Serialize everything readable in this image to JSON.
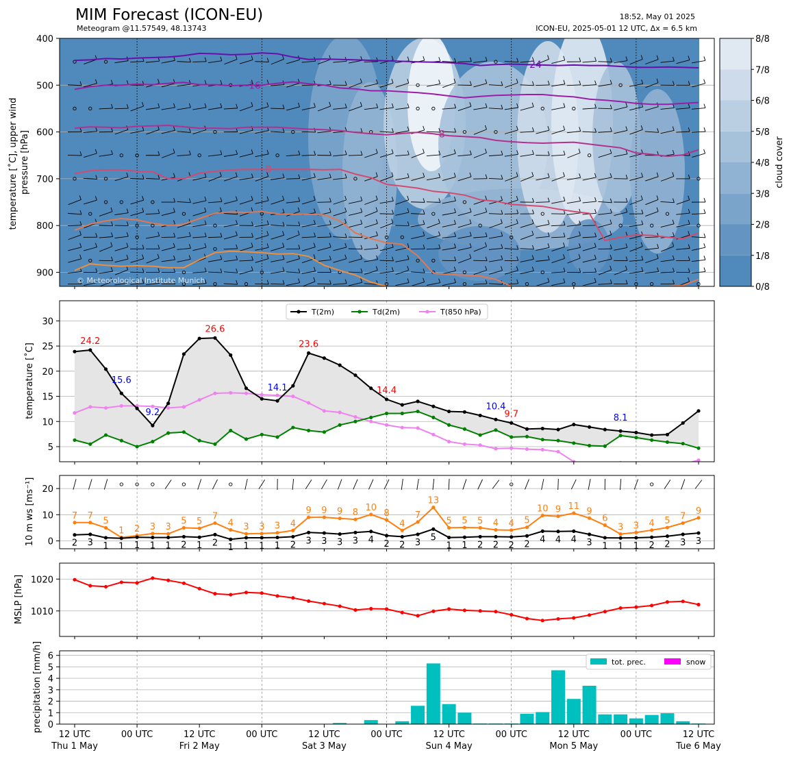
{
  "header": {
    "title": "MIM Forecast (ICON-EU)",
    "subtitle": "Meteogram @11.57549, 48.13743",
    "timestamp": "18:52, May 01 2025",
    "run_info": "ICON-EU, 2025-05-01 12 UTC, Δx = 6.5 km",
    "copyright": "© Meteorological Institute Munich"
  },
  "time_axis": {
    "tick_labels": [
      "12 UTC",
      "00 UTC",
      "12 UTC",
      "00 UTC",
      "12 UTC",
      "00 UTC",
      "12 UTC",
      "00 UTC",
      "12 UTC",
      "00 UTC",
      "12 UTC"
    ],
    "day_labels": [
      "Thu 1 May",
      "Fri 2 May",
      "Sat 3 May",
      "Sun 4 May",
      "Mon 5 May",
      "Tue 6 May"
    ]
  },
  "colors": {
    "t2m": "#000000",
    "td2m": "#008000",
    "t850": "#ee82ee",
    "ws": "#ff7f0e",
    "mslp": "#ff0000",
    "precip": "#00bfbf",
    "snow": "#ff00ff",
    "max_label": "#ff0000",
    "min_label": "#0000ff"
  },
  "chart_data": [
    {
      "type": "heatmap",
      "ylabel": "temperature [˚C], upper wind\npressure [hPa]",
      "ylim": [
        930,
        400
      ],
      "yticks": [
        400,
        500,
        600,
        700,
        800,
        900
      ],
      "colorbar": {
        "label": "cloud cover",
        "ticks": [
          "0/8",
          "1/8",
          "2/8",
          "3/8",
          "4/8",
          "5/8",
          "6/8",
          "7/8",
          "8/8"
        ],
        "colors": [
          "#5089bb",
          "#6394c2",
          "#7aa4ca",
          "#91b3d3",
          "#a6c1da",
          "#bacfe2",
          "#cddbea",
          "#e0e9f2",
          "#f2f6fa"
        ]
      },
      "isotherms": [
        {
          "label": "-24",
          "color": "#6a0dad",
          "pressure": [
            447,
            446,
            443,
            444,
            442,
            441,
            440,
            437,
            432,
            433,
            435,
            434,
            431,
            433,
            440,
            445,
            444,
            445,
            446,
            447,
            448,
            449,
            450,
            451,
            452,
            454,
            458,
            456,
            455,
            456,
            457,
            458,
            457,
            458,
            458,
            460,
            462,
            462,
            461,
            462,
            463
          ]
        },
        {
          "label": "-16",
          "color": "#9b1fa6",
          "pressure": [
            509,
            503,
            500,
            500,
            498,
            499,
            496,
            494,
            499,
            499,
            501,
            500,
            500,
            496,
            493,
            497,
            500,
            506,
            508,
            512,
            512,
            514,
            516,
            519,
            523,
            527,
            524,
            522,
            521,
            520,
            520,
            523,
            525,
            530,
            532,
            535,
            539,
            541,
            541,
            539,
            537
          ]
        },
        {
          "label": "-8",
          "color": "#b3318e",
          "pressure": [
            592,
            589,
            590,
            591,
            588,
            587,
            586,
            589,
            592,
            592,
            593,
            590,
            590,
            590,
            592,
            594,
            595,
            597,
            601,
            604,
            606,
            603,
            601,
            604,
            608,
            610,
            612,
            618,
            621,
            623,
            624,
            623,
            622,
            626,
            630,
            634,
            645,
            648,
            652,
            649,
            638
          ]
        },
        {
          "label": "0",
          "color": "#d24b6e",
          "pressure": [
            689,
            683,
            681,
            681,
            684,
            685,
            700,
            700,
            688,
            684,
            681,
            680,
            680,
            680,
            680,
            680,
            681,
            680,
            690,
            698,
            712,
            716,
            720,
            727,
            730,
            735,
            745,
            748,
            755,
            757,
            759,
            765,
            770,
            774,
            832,
            825,
            820,
            821,
            825,
            828,
            816
          ]
        },
        {
          "label": "8",
          "color": "#e07852",
          "pressure": [
            810,
            797,
            790,
            785,
            788,
            795,
            800,
            797,
            785,
            774,
            771,
            772,
            770,
            775,
            776,
            776,
            777,
            790,
            816,
            828,
            837,
            840,
            865,
            902,
            905,
            906,
            908,
            915,
            930,
            930,
            930,
            930,
            930,
            930,
            930,
            930,
            930,
            930,
            930,
            928,
            915
          ]
        },
        {
          "label": "16",
          "color": "#ef8e3c",
          "pressure": [
            896,
            882,
            885,
            887,
            886,
            887,
            890,
            890,
            873,
            858,
            855,
            856,
            858,
            861,
            860,
            866,
            885,
            896,
            906,
            921,
            930,
            930,
            930,
            930,
            930,
            930,
            930,
            930,
            930,
            930,
            930,
            930,
            930,
            930,
            930,
            930,
            930,
            930,
            930,
            930,
            930
          ]
        }
      ]
    },
    {
      "type": "line",
      "ylabel": "temperature [˚C]",
      "ylim": [
        2,
        34
      ],
      "yticks": [
        5,
        10,
        15,
        20,
        25,
        30
      ],
      "x_hours": [
        0,
        3,
        6,
        9,
        12,
        15,
        18,
        21,
        24,
        27,
        30,
        33,
        36,
        39,
        42,
        45,
        48,
        51,
        54,
        57,
        60,
        63,
        66,
        69,
        72,
        75,
        78,
        81,
        84,
        87,
        90,
        93,
        96,
        99,
        102,
        105,
        108,
        111,
        114,
        117,
        120
      ],
      "legend": [
        "T(2m)",
        "Td(2m)",
        "T(850 hPa)"
      ],
      "series": [
        {
          "name": "T(2m)",
          "values": [
            23.9,
            24.2,
            20.4,
            15.6,
            12.6,
            9.2,
            13.6,
            23.4,
            26.5,
            26.6,
            23.2,
            16.6,
            14.5,
            14.1,
            17.1,
            23.6,
            22.6,
            21.2,
            19.2,
            16.6,
            14.4,
            13.3,
            14.0,
            13.0,
            12.0,
            11.9,
            11.2,
            10.4,
            9.7,
            8.5,
            8.6,
            8.4,
            9.4,
            8.9,
            8.4,
            8.1,
            7.8,
            7.3,
            7.4,
            9.7,
            12.1
          ]
        },
        {
          "name": "Td(2m)",
          "values": [
            6.3,
            5.5,
            7.3,
            6.2,
            5.0,
            6.0,
            7.7,
            7.9,
            6.2,
            5.5,
            8.2,
            6.5,
            7.4,
            6.9,
            8.8,
            8.2,
            7.9,
            9.3,
            10.0,
            10.8,
            11.6,
            11.6,
            12.0,
            10.8,
            9.3,
            8.5,
            7.3,
            8.3,
            6.9,
            7.0,
            6.4,
            6.2,
            5.7,
            5.2,
            5.1,
            7.2,
            6.8,
            6.3,
            5.9,
            5.6,
            4.7
          ]
        },
        {
          "name": "T(850 hPa)",
          "values": [
            11.7,
            12.9,
            12.7,
            13.1,
            13.1,
            13.0,
            12.7,
            12.9,
            14.3,
            15.6,
            15.7,
            15.6,
            15.3,
            15.2,
            15.0,
            13.7,
            12.1,
            11.8,
            10.9,
            10.0,
            9.3,
            8.8,
            8.7,
            7.4,
            6.0,
            5.5,
            5.3,
            4.6,
            4.7,
            4.5,
            4.4,
            4.0,
            2.0,
            1.6,
            1.5,
            1.8,
            1.7,
            1.5,
            1.4,
            1.5,
            2.3
          ]
        }
      ],
      "annotations": [
        {
          "text": "24.2",
          "x": 3,
          "y": 24.2,
          "kind": "max"
        },
        {
          "text": "15.6",
          "x": 9,
          "y": 15.6,
          "kind": "min"
        },
        {
          "text": "9.2",
          "x": 15,
          "y": 9.2,
          "kind": "min"
        },
        {
          "text": "26.6",
          "x": 27,
          "y": 26.6,
          "kind": "max"
        },
        {
          "text": "14.1",
          "x": 39,
          "y": 14.1,
          "kind": "min"
        },
        {
          "text": "23.6",
          "x": 45,
          "y": 23.6,
          "kind": "max"
        },
        {
          "text": "14.4",
          "x": 60,
          "y": 14.4,
          "kind": "max"
        },
        {
          "text": "10.4",
          "x": 81,
          "y": 10.4,
          "kind": "min"
        },
        {
          "text": "9.7",
          "x": 84,
          "y": 9.7,
          "kind": "max"
        },
        {
          "text": "8.1",
          "x": 105,
          "y": 8.1,
          "kind": "min"
        }
      ]
    },
    {
      "type": "line",
      "ylabel": "10 m ws [ms⁻¹]",
      "ylim": [
        -3,
        25
      ],
      "yticks": [
        0,
        10,
        20
      ],
      "series": [
        {
          "name": "mean",
          "values": [
            2.3,
            2.5,
            1.2,
            1.0,
            1.4,
            1.3,
            1.3,
            1.6,
            1.4,
            2.4,
            0.6,
            1.2,
            1.2,
            1.3,
            1.6,
            3.2,
            3.0,
            2.6,
            3.2,
            3.6,
            2.0,
            1.6,
            2.5,
            4.5,
            1.3,
            1.4,
            1.6,
            1.6,
            1.5,
            1.9,
            3.7,
            3.6,
            3.7,
            2.5,
            1.2,
            1.1,
            1.2,
            1.4,
            1.8,
            2.5,
            3.0
          ]
        },
        {
          "name": "gust",
          "values": [
            7.0,
            7.0,
            5.0,
            1.3,
            2.0,
            2.8,
            2.7,
            5.0,
            4.8,
            6.8,
            4.2,
            2.7,
            2.8,
            3.1,
            4.0,
            9.0,
            9.0,
            8.6,
            8.2,
            10.1,
            8.0,
            4.0,
            7.2,
            12.8,
            5.0,
            5.1,
            5.0,
            4.2,
            4.1,
            5.2,
            9.7,
            9.4,
            10.6,
            8.7,
            6.0,
            2.6,
            3.2,
            4.1,
            5.1,
            6.8,
            8.8
          ]
        }
      ],
      "gust_labels": [
        "7",
        "7",
        "5",
        "1",
        "2",
        "3",
        "3",
        "5",
        "5",
        "7",
        "4",
        "3",
        "3",
        "3",
        "4",
        "9",
        "9",
        "9",
        "8",
        "10",
        "8",
        "4",
        "7",
        "13",
        "5",
        "5",
        "5",
        "4",
        "4",
        "5",
        "10",
        "9",
        "11",
        "9",
        "6",
        "3",
        "3",
        "4",
        "5",
        "7",
        "9"
      ],
      "mean_labels": [
        "2",
        "3",
        "1",
        "1",
        "1",
        "1",
        "1",
        "2",
        "1",
        "2",
        "1",
        "1",
        "1",
        "1",
        "2",
        "3",
        "3",
        "3",
        "3",
        "4",
        "2",
        "2",
        "3",
        "5",
        "1",
        "1",
        "2",
        "2",
        "2",
        "2",
        "4",
        "4",
        "4",
        "3",
        "1",
        "1",
        "1",
        "2",
        "2",
        "3",
        "3"
      ]
    },
    {
      "type": "line",
      "ylabel": "MSLP [hPa]",
      "ylim": [
        1002,
        1025
      ],
      "yticks": [
        1010,
        1020
      ],
      "series": [
        {
          "name": "MSLP",
          "values": [
            1019.8,
            1017.9,
            1017.6,
            1019.0,
            1018.8,
            1020.3,
            1019.6,
            1018.7,
            1017.0,
            1015.4,
            1015.1,
            1015.8,
            1015.6,
            1014.7,
            1014.1,
            1013.1,
            1012.3,
            1011.5,
            1010.3,
            1010.7,
            1010.6,
            1009.5,
            1008.5,
            1009.9,
            1010.6,
            1010.2,
            1010.0,
            1009.8,
            1008.8,
            1007.6,
            1007.0,
            1007.5,
            1007.8,
            1008.7,
            1009.8,
            1010.9,
            1011.2,
            1011.7,
            1012.8,
            1013.0,
            1012.0
          ]
        }
      ]
    },
    {
      "type": "bar",
      "ylabel": "precipitation [mm/h]",
      "ylim": [
        0,
        6.4
      ],
      "yticks": [
        0,
        1,
        2,
        3,
        4,
        5,
        6
      ],
      "legend": [
        "tot. prec.",
        "snow"
      ],
      "series": [
        {
          "name": "tot. prec.",
          "values": [
            0,
            0,
            0,
            0,
            0,
            0,
            0,
            0,
            0,
            0,
            0,
            0,
            0,
            0,
            0,
            0,
            0,
            0.1,
            0,
            0.35,
            0,
            0.25,
            1.6,
            5.3,
            1.75,
            1.0,
            0.05,
            0.05,
            0.05,
            0.9,
            1.05,
            4.7,
            2.2,
            3.35,
            0.85,
            0.85,
            0.5,
            0.8,
            0.95,
            0.25,
            0.05
          ]
        },
        {
          "name": "snow",
          "values": [
            0,
            0,
            0,
            0,
            0,
            0,
            0,
            0,
            0,
            0,
            0,
            0,
            0,
            0,
            0,
            0,
            0,
            0,
            0,
            0,
            0,
            0,
            0,
            0,
            0,
            0,
            0,
            0,
            0,
            0,
            0,
            0,
            0,
            0,
            0,
            0,
            0,
            0,
            0,
            0,
            0
          ]
        }
      ]
    }
  ]
}
